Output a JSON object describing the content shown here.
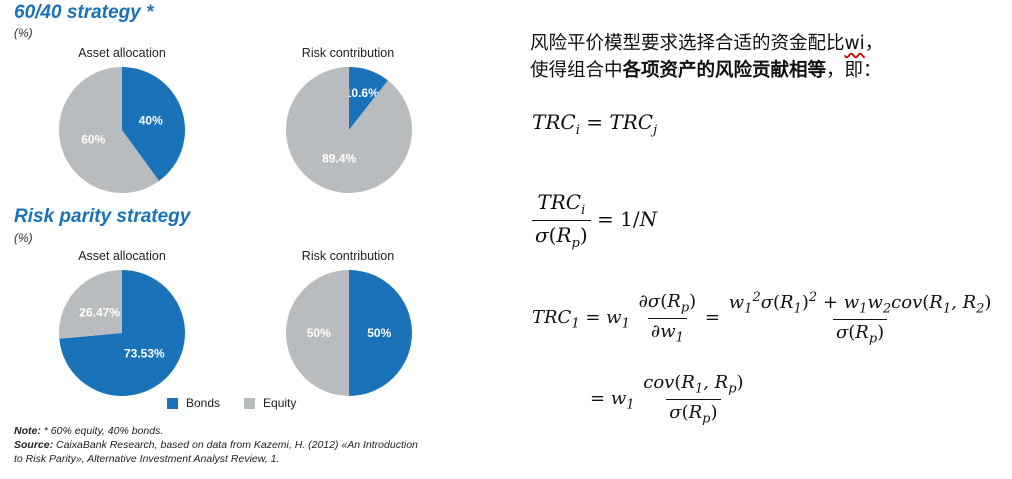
{
  "left_panel": {
    "strategy1": {
      "title": "60/40 strategy *",
      "unit": "(%)",
      "pie1_title": "Asset allocation",
      "pie2_title": "Risk contribution"
    },
    "strategy2": {
      "title": "Risk parity strategy",
      "unit": "(%)",
      "pie1_title": "Asset allocation",
      "pie2_title": "Risk contribution"
    },
    "legend": {
      "bonds": "Bonds",
      "equity": "Equity"
    },
    "note_label": "Note:",
    "note_text": " * 60% equity, 40% bonds.",
    "source_label": "Source:",
    "source_text": " CaixaBank Research, based on data from Kazemi, H. (2012) «An Introduction to Risk Parity», Alternative Investment Analyst Review, 1."
  },
  "colors": {
    "bonds": "#1a72b8",
    "equity": "#b9bcbe"
  },
  "chart_data": [
    {
      "type": "pie",
      "title": "Asset allocation",
      "group": "60/40 strategy *",
      "slices": [
        {
          "name": "Bonds",
          "value": 40,
          "label": "40%"
        },
        {
          "name": "Equity",
          "value": 60,
          "label": "60%"
        }
      ]
    },
    {
      "type": "pie",
      "title": "Risk contribution",
      "group": "60/40 strategy *",
      "slices": [
        {
          "name": "Bonds",
          "value": 10.6,
          "label": "10.6%"
        },
        {
          "name": "Equity",
          "value": 89.4,
          "label": "89.4%"
        }
      ]
    },
    {
      "type": "pie",
      "title": "Asset allocation",
      "group": "Risk parity strategy",
      "slices": [
        {
          "name": "Bonds",
          "value": 73.53,
          "label": "73.53%"
        },
        {
          "name": "Equity",
          "value": 26.47,
          "label": "26.47%"
        }
      ]
    },
    {
      "type": "pie",
      "title": "Risk contribution",
      "group": "Risk parity strategy",
      "slices": [
        {
          "name": "Bonds",
          "value": 50,
          "label": "50%"
        },
        {
          "name": "Equity",
          "value": 50,
          "label": "50%"
        }
      ]
    }
  ],
  "right_panel": {
    "line1_a": "风险平价模型要求选择合适的资金配比",
    "line1_wi": "wi",
    "line1_b": "，",
    "line2_a": "使得组合中",
    "line2_bold": "各项资产的风险贡献相等",
    "line2_b": "，即："
  }
}
